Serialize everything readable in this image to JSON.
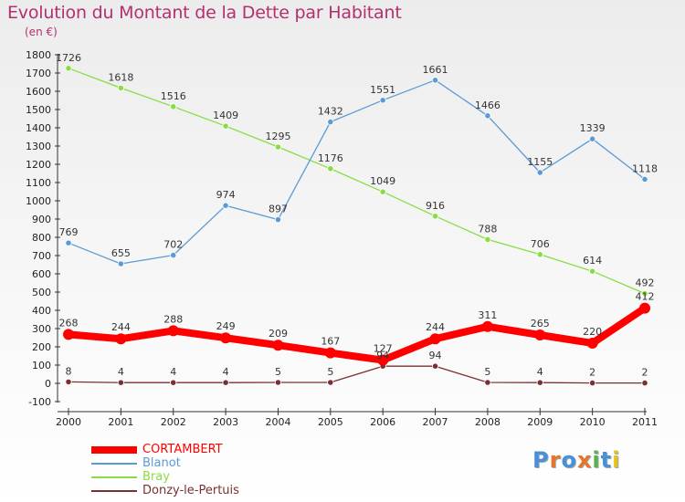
{
  "title": "Evolution du Montant de la Dette par Habitant",
  "subtitle": "(en €)",
  "logo": {
    "text": "Proxiti",
    "letters": [
      {
        "ch": "P",
        "color": "#4a90d9"
      },
      {
        "ch": "r",
        "color": "#e8742a"
      },
      {
        "ch": "o",
        "color": "#4a90d9"
      },
      {
        "ch": "x",
        "color": "#e8742a"
      },
      {
        "ch": "i",
        "color": "#5ab34a"
      },
      {
        "ch": "t",
        "color": "#4a90d9"
      },
      {
        "ch": "i",
        "color": "#e8c020"
      }
    ]
  },
  "chart_data": {
    "type": "line",
    "x": [
      "2000",
      "2001",
      "2002",
      "2003",
      "2004",
      "2005",
      "2006",
      "2007",
      "2008",
      "2009",
      "2010",
      "2011"
    ],
    "ylim": [
      -100,
      1800
    ],
    "yticks": [
      -100,
      0,
      100,
      200,
      300,
      400,
      500,
      600,
      700,
      800,
      900,
      1000,
      1100,
      1200,
      1300,
      1400,
      1500,
      1600,
      1700,
      1800
    ],
    "grid": false,
    "legend_position": "bottom-left",
    "series": [
      {
        "name": "CORTAMBERT",
        "color": "#ff0000",
        "values": [
          268,
          244,
          288,
          249,
          209,
          167,
          127,
          244,
          311,
          265,
          220,
          412
        ]
      },
      {
        "name": "Blanot",
        "color": "#5b9bd5",
        "values": [
          769,
          655,
          702,
          974,
          897,
          1432,
          1551,
          1661,
          1466,
          1155,
          1339,
          1118
        ]
      },
      {
        "name": "Bray",
        "color": "#88dd44",
        "values": [
          1726,
          1618,
          1516,
          1409,
          1295,
          1176,
          1049,
          916,
          788,
          706,
          614,
          492
        ]
      },
      {
        "name": "Donzy-le-Pertuis",
        "color": "#7a3030",
        "values": [
          8,
          4,
          4,
          4,
          5,
          5,
          94,
          94,
          5,
          4,
          2,
          2
        ]
      }
    ]
  }
}
